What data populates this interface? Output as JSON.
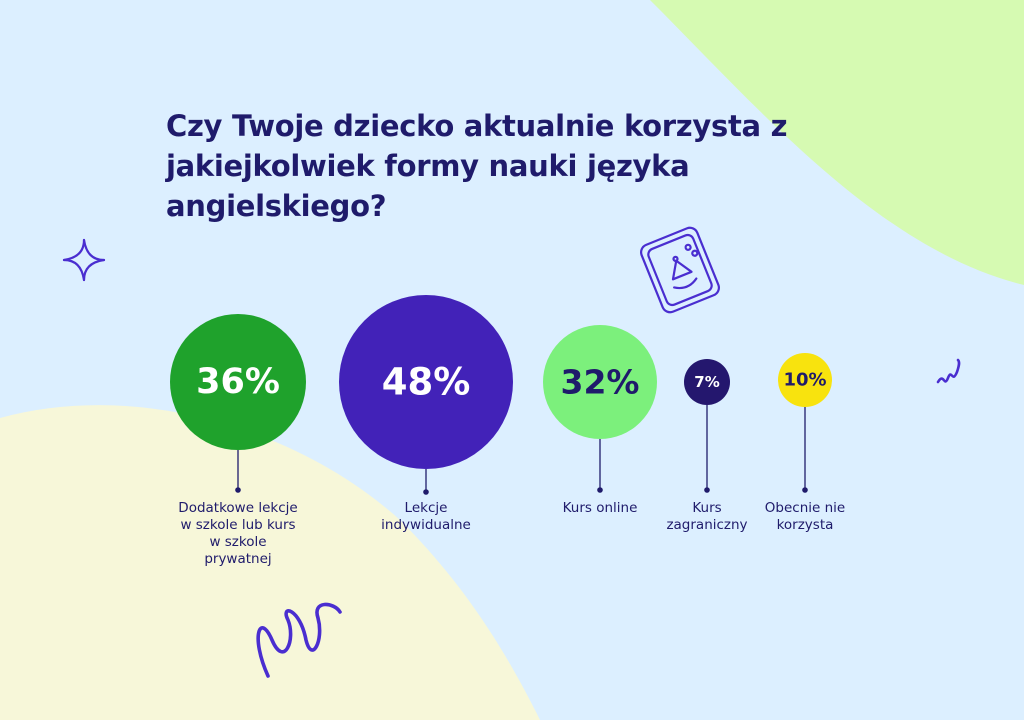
{
  "title_lines": [
    "Czy Twoje dziecko aktualnie korzysta z",
    "jakiejkolwiek formy nauki języka",
    "angielskiego?"
  ],
  "colors": {
    "background": "#dcefff",
    "title": "#1f1b6b",
    "green": "#1fa22c",
    "purple": "#4222b8",
    "light_green": "#7cf07c",
    "navy": "#24176e",
    "yellow": "#f8e30e",
    "doodle": "#4a2ed0"
  },
  "chart_data": {
    "type": "bubble",
    "unit": "%",
    "categories": [
      "Dodatkowe lekcje w szkole lub kurs w szkole prywatnej",
      "Lekcje indywidualne",
      "Kurs online",
      "Kurs zagraniczny",
      "Obecnie nie korzysta"
    ],
    "values": [
      36,
      48,
      32,
      7,
      10
    ],
    "value_labels": [
      "36%",
      "48%",
      "32%",
      "7%",
      "10%"
    ],
    "label_lines": [
      [
        "Dodatkowe lekcje",
        "w szkole lub kurs",
        "w szkole",
        "prywatnej"
      ],
      [
        "Lekcje",
        "indywidualne"
      ],
      [
        "Kurs online"
      ],
      [
        "Kurs",
        "zagraniczny"
      ],
      [
        "Obecnie nie",
        "korzysta"
      ]
    ],
    "bubble_colors": [
      "#1fa22c",
      "#4222b8",
      "#7cf07c",
      "#24176e",
      "#f8e30e"
    ],
    "value_text_colors": [
      "#ffffff",
      "#ffffff",
      "#1f1b6b",
      "#ffffff",
      "#1f1b6b"
    ]
  }
}
